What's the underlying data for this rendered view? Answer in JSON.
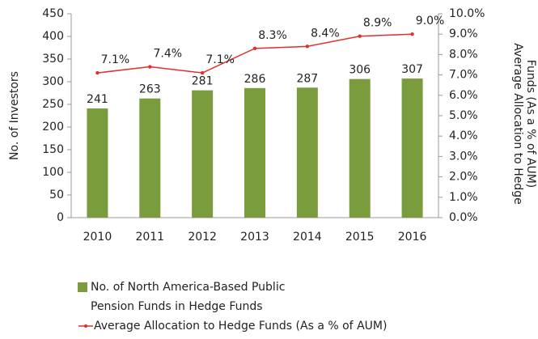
{
  "chart_data": {
    "type": "bar_line",
    "categories": [
      "2010",
      "2011",
      "2012",
      "2013",
      "2014",
      "2015",
      "2016"
    ],
    "ylabel": "No. of Investors",
    "y2label": [
      "Average Allocation to Hedge",
      "Funds (As a % of AUM)"
    ],
    "series": [
      {
        "name": "No. of North America-Based Public Pension Funds in Hedge Funds",
        "type": "bar",
        "color": "#7a9c3c",
        "values": [
          241,
          263,
          281,
          286,
          287,
          306,
          307
        ]
      },
      {
        "name": "Average Allocation to Hedge Funds (As a % of AUM)",
        "type": "line",
        "axis": "y2",
        "color": "#e0302a",
        "values": [
          7.1,
          7.4,
          7.1,
          8.3,
          8.4,
          8.9,
          9.0
        ],
        "value_labels": [
          "7.1%",
          "7.4%",
          "7.1%",
          "8.3%",
          "8.4%",
          "8.9%",
          "9.0%"
        ]
      }
    ],
    "ylim": [
      0,
      450
    ],
    "yticks": [
      0,
      50,
      100,
      150,
      200,
      250,
      300,
      350,
      400,
      450
    ],
    "y2lim": [
      0,
      10
    ],
    "y2ticks": [
      {
        "value": 0,
        "label": "0.0%"
      },
      {
        "value": 1,
        "label": "1.0%"
      },
      {
        "value": 2,
        "label": "2.0%"
      },
      {
        "value": 3,
        "label": "3.0%"
      },
      {
        "value": 4,
        "label": "4.0%"
      },
      {
        "value": 5,
        "label": "5.0%"
      },
      {
        "value": 6,
        "label": "6.0%"
      },
      {
        "value": 7,
        "label": "7.0%"
      },
      {
        "value": 8,
        "label": "8.0%"
      },
      {
        "value": 9,
        "label": "9.0%"
      },
      {
        "value": 10,
        "label": "10.0%"
      }
    ],
    "grid": false,
    "legend": "bottom"
  }
}
